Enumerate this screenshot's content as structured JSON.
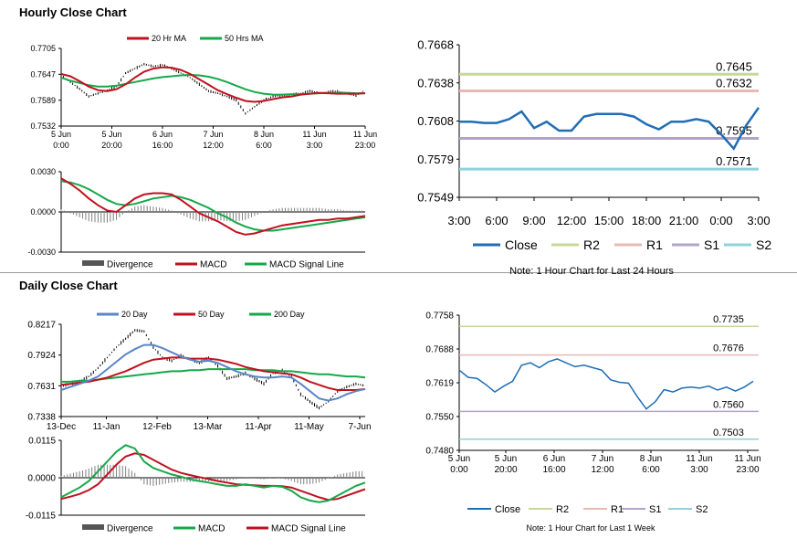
{
  "hourly_title": "Hourly Close Chart",
  "daily_title": "Daily Close Chart",
  "colors": {
    "ma_short": "#c0111f",
    "ma_long": "#16a84a",
    "ma_20day": "#5a86c4",
    "close": "#1f6db5",
    "r2": "#c5d89a",
    "r1": "#e8b8b4",
    "s1": "#b3a3c8",
    "s2": "#8fd1dc",
    "divergence": "#808080",
    "price": "#000000"
  },
  "chart_data": [
    {
      "id": "hourly_price",
      "type": "line",
      "legend": [
        "20 Hr MA",
        "50 Hrs MA"
      ],
      "y_ticks": [
        "0.7705",
        "0.7647",
        "0.7589",
        "0.7532"
      ],
      "ylim": [
        0.7532,
        0.7705
      ],
      "x_tick_labels": [
        [
          "5 Jun",
          "0:00"
        ],
        [
          "5 Jun",
          "20:00"
        ],
        [
          "6 Jun",
          "16:00"
        ],
        [
          "7 Jun",
          "12:00"
        ],
        [
          "8 Jun",
          "6:00"
        ],
        [
          "11 Jun",
          "3:00"
        ],
        [
          "11 Jun",
          "23:00"
        ]
      ],
      "x": [
        0,
        10,
        20,
        30,
        40,
        50,
        60,
        70,
        80,
        90,
        100,
        110,
        120,
        130,
        140,
        150,
        160,
        170,
        180,
        190,
        200,
        210,
        220,
        230,
        240,
        250,
        260,
        270,
        280,
        290,
        300,
        310,
        320,
        330
      ],
      "close": [
        0.7645,
        0.763,
        0.7615,
        0.7598,
        0.7605,
        0.7612,
        0.762,
        0.765,
        0.766,
        0.767,
        0.7665,
        0.7668,
        0.766,
        0.765,
        0.764,
        0.7625,
        0.761,
        0.7605,
        0.7598,
        0.759,
        0.756,
        0.7575,
        0.759,
        0.7598,
        0.76,
        0.7602,
        0.7605,
        0.761,
        0.7605,
        0.7608,
        0.761,
        0.7604,
        0.76,
        0.7612
      ],
      "series": [
        {
          "name": "20 Hr MA",
          "values": [
            0.7648,
            0.7643,
            0.7632,
            0.762,
            0.7612,
            0.761,
            0.7614,
            0.7625,
            0.764,
            0.7653,
            0.766,
            0.7663,
            0.7662,
            0.7657,
            0.7648,
            0.7636,
            0.7624,
            0.7612,
            0.7603,
            0.7595,
            0.7588,
            0.7586,
            0.7588,
            0.7592,
            0.7596,
            0.7598,
            0.7602,
            0.7604,
            0.7606,
            0.7605,
            0.7604,
            0.7604,
            0.7604,
            0.7605
          ]
        },
        {
          "name": "50 Hrs MA",
          "values": [
            0.764,
            0.7633,
            0.7628,
            0.7623,
            0.762,
            0.762,
            0.7622,
            0.7626,
            0.763,
            0.7634,
            0.7638,
            0.7641,
            0.7643,
            0.7645,
            0.7646,
            0.7645,
            0.7642,
            0.7637,
            0.763,
            0.7622,
            0.7614,
            0.7608,
            0.7604,
            0.7602,
            0.7602,
            0.7603,
            0.7603,
            0.7604,
            0.7605,
            0.7606,
            0.7606,
            0.7606,
            0.7605,
            0.7605
          ]
        }
      ]
    },
    {
      "id": "hourly_macd",
      "type": "line",
      "legend": [
        "Divergence",
        "MACD",
        "MACD Signal Line"
      ],
      "y_ticks": [
        "0.0030",
        "0.0000",
        "-0.0030"
      ],
      "ylim": [
        -0.003,
        0.003
      ],
      "series": [
        {
          "name": "MACD",
          "values": [
            0.0025,
            0.0021,
            0.0016,
            0.001,
            0.0005,
            0.0001,
            0.0,
            0.0005,
            0.001,
            0.0013,
            0.0014,
            0.0014,
            0.0013,
            0.0009,
            0.0004,
            -0.0001,
            -0.0004,
            -0.0007,
            -0.0011,
            -0.0015,
            -0.0017,
            -0.0016,
            -0.0014,
            -0.0012,
            -0.001,
            -0.0009,
            -0.0008,
            -0.0007,
            -0.0006,
            -0.0006,
            -0.0005,
            -0.0005,
            -0.0004,
            -0.0003
          ]
        },
        {
          "name": "MACD Signal Line",
          "values": [
            0.0023,
            0.0022,
            0.002,
            0.0017,
            0.0013,
            0.0009,
            0.0006,
            0.0005,
            0.0006,
            0.0008,
            0.001,
            0.0011,
            0.0012,
            0.0011,
            0.0009,
            0.0006,
            0.0003,
            -0.0001,
            -0.0004,
            -0.0008,
            -0.0011,
            -0.0013,
            -0.0014,
            -0.0014,
            -0.0013,
            -0.0012,
            -0.0011,
            -0.001,
            -0.0009,
            -0.0008,
            -0.0007,
            -0.0006,
            -0.0005,
            -0.0004
          ]
        }
      ],
      "divergence": [
        0.0002,
        -0.0001,
        -0.0004,
        -0.0007,
        -0.0008,
        -0.0008,
        -0.0006,
        0.0,
        0.0004,
        0.0005,
        0.0004,
        0.0003,
        0.0001,
        -0.0002,
        -0.0005,
        -0.0007,
        -0.0007,
        -0.0006,
        -0.0007,
        -0.0007,
        -0.0006,
        -0.0003,
        0.0,
        0.0002,
        0.0003,
        0.0003,
        0.0003,
        0.0003,
        0.0003,
        0.0002,
        0.0002,
        0.0001,
        0.0001,
        0.0001
      ]
    },
    {
      "id": "hourly_24h",
      "type": "line",
      "y_ticks": [
        "0.7668",
        "0.7638",
        "0.7608",
        "0.7579",
        "0.7549"
      ],
      "ylim": [
        0.7549,
        0.7668
      ],
      "x_tick_labels": [
        "3:00",
        "6:00",
        "9:00",
        "12:00",
        "15:00",
        "18:00",
        "21:00",
        "0:00",
        "3:00"
      ],
      "levels": [
        {
          "name": "R2",
          "value": 0.7645,
          "label": "0.7645"
        },
        {
          "name": "R1",
          "value": 0.7632,
          "label": "0.7632"
        },
        {
          "name": "S1",
          "value": 0.7595,
          "label": "0.7595"
        },
        {
          "name": "S2",
          "value": 0.7571,
          "label": "0.7571"
        }
      ],
      "close": [
        0.7608,
        0.7608,
        0.7607,
        0.7607,
        0.761,
        0.7616,
        0.7603,
        0.7608,
        0.7601,
        0.7601,
        0.7612,
        0.7614,
        0.7614,
        0.7614,
        0.7612,
        0.7606,
        0.7602,
        0.7608,
        0.7608,
        0.761,
        0.7608,
        0.7598,
        0.7587,
        0.7605,
        0.7619
      ],
      "legend": [
        "Close",
        "R2",
        "R1",
        "S1",
        "S2"
      ],
      "note": "Note: 1 Hour Chart for Last 24 Hours"
    },
    {
      "id": "daily_price",
      "type": "line",
      "legend": [
        "20 Day",
        "50 Day",
        "200 Day"
      ],
      "y_ticks": [
        "0.8217",
        "0.7924",
        "0.7631",
        "0.7338"
      ],
      "ylim": [
        0.7338,
        0.8217
      ],
      "x_tick_labels": [
        "13-Dec",
        "11-Jan",
        "12-Feb",
        "13-Mar",
        "11-Apr",
        "11-May",
        "7-Jun"
      ],
      "x": [
        0,
        10,
        20,
        30,
        40,
        50,
        60,
        70,
        80,
        90,
        100,
        110,
        120,
        130,
        140,
        150,
        160,
        170,
        180,
        190,
        200,
        210,
        220,
        230,
        240,
        250,
        260,
        270,
        280,
        290,
        300,
        310,
        320,
        330
      ],
      "close": [
        0.763,
        0.765,
        0.767,
        0.772,
        0.78,
        0.79,
        0.8,
        0.808,
        0.816,
        0.815,
        0.8,
        0.79,
        0.787,
        0.792,
        0.788,
        0.785,
        0.79,
        0.782,
        0.77,
        0.772,
        0.775,
        0.77,
        0.765,
        0.775,
        0.778,
        0.772,
        0.755,
        0.748,
        0.742,
        0.748,
        0.758,
        0.762,
        0.765,
        0.763
      ],
      "series": [
        {
          "name": "20 Day",
          "values": [
            0.759,
            0.762,
            0.765,
            0.768,
            0.772,
            0.779,
            0.786,
            0.793,
            0.798,
            0.802,
            0.802,
            0.799,
            0.795,
            0.791,
            0.788,
            0.786,
            0.787,
            0.785,
            0.781,
            0.777,
            0.774,
            0.772,
            0.771,
            0.771,
            0.772,
            0.771,
            0.765,
            0.758,
            0.751,
            0.749,
            0.751,
            0.755,
            0.758,
            0.76
          ]
        },
        {
          "name": "50 Day",
          "values": [
            0.764,
            0.765,
            0.766,
            0.767,
            0.769,
            0.771,
            0.774,
            0.777,
            0.781,
            0.785,
            0.788,
            0.789,
            0.79,
            0.79,
            0.789,
            0.789,
            0.789,
            0.788,
            0.786,
            0.784,
            0.781,
            0.779,
            0.777,
            0.776,
            0.775,
            0.774,
            0.771,
            0.767,
            0.764,
            0.761,
            0.759,
            0.759,
            0.759,
            0.76
          ]
        },
        {
          "name": "200 Day",
          "values": [
            0.767,
            0.767,
            0.768,
            0.768,
            0.769,
            0.77,
            0.771,
            0.772,
            0.773,
            0.774,
            0.775,
            0.776,
            0.777,
            0.777,
            0.778,
            0.778,
            0.779,
            0.779,
            0.779,
            0.779,
            0.779,
            0.778,
            0.778,
            0.778,
            0.777,
            0.777,
            0.776,
            0.775,
            0.774,
            0.774,
            0.773,
            0.772,
            0.772,
            0.771
          ]
        }
      ]
    },
    {
      "id": "daily_macd",
      "type": "line",
      "legend": [
        "Divergence",
        "MACD",
        "MACD Signal Line"
      ],
      "y_ticks": [
        "0.0115",
        "0.0000",
        "-0.0115"
      ],
      "ylim": [
        -0.0115,
        0.0115
      ],
      "series": [
        {
          "name": "MACD",
          "values": [
            -0.006,
            -0.0045,
            -0.003,
            -0.001,
            0.002,
            0.005,
            0.008,
            0.01,
            0.009,
            0.005,
            0.003,
            0.002,
            0.001,
            0.0003,
            -0.0005,
            -0.001,
            -0.0015,
            -0.002,
            -0.0025,
            -0.0025,
            -0.002,
            -0.0025,
            -0.003,
            -0.0025,
            -0.0028,
            -0.004,
            -0.006,
            -0.007,
            -0.0075,
            -0.007,
            -0.0055,
            -0.004,
            -0.0025,
            -0.0015
          ]
        },
        {
          "name": "MACD Signal Line",
          "values": [
            -0.0065,
            -0.0058,
            -0.005,
            -0.0038,
            -0.002,
            0.001,
            0.004,
            0.0065,
            0.0075,
            0.007,
            0.0055,
            0.004,
            0.0025,
            0.0015,
            0.0008,
            0.0002,
            -0.0004,
            -0.001,
            -0.0015,
            -0.002,
            -0.0022,
            -0.0023,
            -0.0025,
            -0.0025,
            -0.0026,
            -0.003,
            -0.004,
            -0.005,
            -0.006,
            -0.0068,
            -0.0065,
            -0.0055,
            -0.0045,
            -0.0035
          ]
        }
      ],
      "divergence": [
        0.0005,
        0.0013,
        0.002,
        0.0028,
        0.004,
        0.004,
        0.004,
        0.0035,
        0.0015,
        -0.002,
        -0.0025,
        -0.002,
        -0.0015,
        -0.0012,
        -0.0013,
        -0.0012,
        -0.0011,
        -0.001,
        -0.001,
        -0.0005,
        0.0002,
        -0.0002,
        -0.0005,
        0.0,
        -0.0002,
        -0.001,
        -0.002,
        -0.002,
        -0.0015,
        -0.0002,
        0.001,
        0.0015,
        0.002,
        0.002
      ]
    },
    {
      "id": "week_1h",
      "type": "line",
      "y_ticks": [
        "0.7758",
        "0.7688",
        "0.7619",
        "0.7550",
        "0.7480"
      ],
      "ylim": [
        0.748,
        0.7758
      ],
      "x_tick_labels": [
        [
          "5 Jun",
          "0:00"
        ],
        [
          "5 Jun",
          "20:00"
        ],
        [
          "6 Jun",
          "16:00"
        ],
        [
          "7 Jun",
          "12:00"
        ],
        [
          "8 Jun",
          "6:00"
        ],
        [
          "11 Jun",
          "3:00"
        ],
        [
          "11 Jun",
          "23:00"
        ]
      ],
      "levels": [
        {
          "name": "R2",
          "value": 0.7735,
          "label": "0.7735"
        },
        {
          "name": "R1",
          "value": 0.7676,
          "label": "0.7676"
        },
        {
          "name": "S1",
          "value": 0.756,
          "label": "0.7560"
        },
        {
          "name": "S2",
          "value": 0.7503,
          "label": "0.7503"
        }
      ],
      "x": [
        0,
        10,
        20,
        30,
        40,
        50,
        60,
        70,
        80,
        90,
        100,
        110,
        120,
        130,
        140,
        150,
        160,
        170,
        180,
        190,
        200,
        210,
        220,
        230,
        240,
        250,
        260,
        270,
        280,
        290,
        300,
        310,
        320,
        330
      ],
      "close": [
        0.7645,
        0.763,
        0.7628,
        0.7615,
        0.76,
        0.7612,
        0.7622,
        0.7655,
        0.766,
        0.765,
        0.7662,
        0.7668,
        0.766,
        0.7652,
        0.7655,
        0.765,
        0.7645,
        0.7625,
        0.762,
        0.7618,
        0.759,
        0.7565,
        0.758,
        0.7605,
        0.76,
        0.7608,
        0.761,
        0.7608,
        0.7612,
        0.7604,
        0.761,
        0.7602,
        0.761,
        0.7622
      ],
      "legend": [
        "Close",
        "R2",
        "R1",
        "S1",
        "S2"
      ],
      "note": "Note: 1 Hour Chart for Last 1 Week"
    }
  ]
}
